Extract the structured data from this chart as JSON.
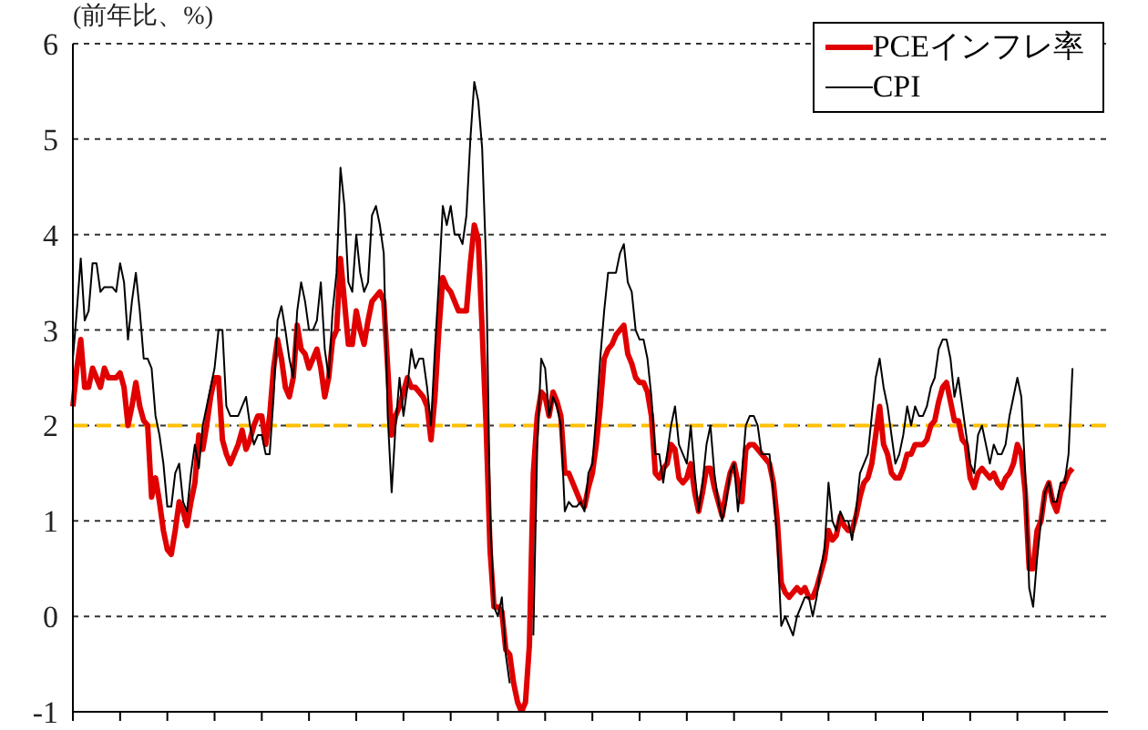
{
  "chart_data": {
    "type": "line",
    "ylabel": "(前年比、%)",
    "categories": [
      null,
      null,
      null,
      null,
      null,
      null,
      null,
      null,
      null,
      null,
      null,
      null,
      null,
      null,
      null,
      null,
      null,
      null,
      null,
      null,
      null,
      null,
      null,
      null,
      null,
      null,
      null,
      null,
      null,
      null,
      null,
      null,
      null,
      null,
      null,
      null,
      null,
      null,
      null,
      null,
      null,
      null,
      null,
      null,
      null,
      null,
      null,
      null,
      null,
      null,
      null,
      null,
      null,
      null,
      null,
      null,
      null,
      null,
      null,
      null,
      null,
      null,
      null,
      null,
      null,
      null,
      null,
      null,
      null,
      null,
      null,
      null,
      null,
      null,
      null,
      null,
      null,
      null,
      null,
      null,
      null,
      null,
      null,
      null,
      null,
      null,
      null,
      null,
      null,
      null,
      null,
      null,
      null,
      null,
      null,
      null,
      null,
      null,
      null,
      null,
      null,
      null,
      null,
      null,
      null,
      null,
      null,
      null,
      null,
      null,
      null,
      null,
      null,
      null,
      null,
      null,
      null,
      null,
      null,
      null,
      null,
      null,
      null,
      null,
      null,
      null,
      null,
      null,
      null,
      null,
      null,
      null,
      null,
      null,
      null,
      null,
      null,
      null,
      null,
      null,
      null,
      null,
      null,
      null,
      null,
      null,
      null,
      null,
      null,
      null,
      null,
      null,
      null,
      null,
      null,
      null,
      null,
      null,
      null,
      null,
      null,
      null,
      null,
      null,
      null,
      null,
      null,
      null,
      null,
      null,
      null,
      null,
      null,
      null,
      null,
      null,
      null,
      null,
      null,
      null,
      null,
      null,
      null,
      null,
      null,
      null,
      null,
      null,
      null,
      null,
      null,
      null,
      null,
      null,
      null,
      null,
      null,
      null,
      null,
      null,
      null,
      null,
      null,
      null,
      null,
      null,
      null,
      null,
      null,
      null,
      null,
      null,
      null,
      null,
      null,
      null,
      null,
      null,
      null,
      null,
      null,
      null,
      null,
      null,
      null,
      null,
      null,
      null,
      null,
      null,
      null,
      null,
      null,
      null,
      null,
      null,
      null,
      null,
      null,
      null,
      null,
      null,
      null,
      null,
      null,
      null,
      null,
      null,
      null,
      null,
      null,
      null,
      null,
      null,
      null,
      null,
      null,
      null,
      null,
      null,
      null,
      null,
      null,
      null
    ],
    "series": [
      {
        "name": "PCEインフレ率",
        "color": "#e00000",
        "values": [
          2.2,
          2.6,
          2.9,
          2.4,
          2.4,
          2.6,
          2.5,
          2.4,
          2.6,
          2.5,
          2.5,
          2.5,
          2.55,
          2.4,
          2.0,
          2.2,
          2.45,
          2.2,
          2.05,
          2.0,
          1.25,
          1.45,
          1.2,
          0.9,
          0.7,
          0.65,
          0.9,
          1.2,
          1.1,
          0.95,
          1.2,
          1.4,
          1.9,
          1.75,
          2.0,
          2.3,
          2.5,
          2.5,
          1.85,
          1.7,
          1.6,
          1.7,
          1.8,
          1.95,
          1.75,
          1.85,
          2.0,
          2.1,
          2.1,
          1.8,
          2.1,
          2.6,
          2.9,
          2.7,
          2.4,
          2.3,
          2.5,
          3.05,
          2.8,
          2.75,
          2.6,
          2.7,
          2.8,
          2.6,
          2.3,
          2.5,
          2.9,
          3.0,
          3.75,
          3.3,
          2.85,
          2.85,
          3.2,
          3.0,
          2.85,
          3.1,
          3.3,
          3.35,
          3.4,
          3.3,
          2.6,
          1.9,
          2.1,
          2.2,
          2.35,
          2.5,
          2.4,
          2.4,
          2.35,
          2.3,
          2.2,
          1.85,
          2.3,
          3.0,
          3.55,
          3.45,
          3.4,
          3.3,
          3.2,
          3.2,
          3.2,
          3.7,
          4.1,
          3.95,
          3.0,
          2.0,
          0.7,
          0.1,
          0.1,
          0.05,
          -0.35,
          -0.4,
          -0.7,
          -0.9,
          -1.0,
          -0.9,
          -0.3,
          1.5,
          2.1,
          2.35,
          2.3,
          2.1,
          2.35,
          2.25,
          2.1,
          1.5,
          1.5,
          1.4,
          1.3,
          1.2,
          1.15,
          1.35,
          1.5,
          1.8,
          2.2,
          2.7,
          2.8,
          2.85,
          2.95,
          3.0,
          3.05,
          2.75,
          2.65,
          2.5,
          2.45,
          2.45,
          2.35,
          2.1,
          1.5,
          1.45,
          1.55,
          1.6,
          1.8,
          1.75,
          1.45,
          1.4,
          1.45,
          1.6,
          1.3,
          1.1,
          1.3,
          1.55,
          1.55,
          1.35,
          1.2,
          1.05,
          1.3,
          1.5,
          1.6,
          1.4,
          1.2,
          1.75,
          1.8,
          1.8,
          1.75,
          1.7,
          1.65,
          1.6,
          1.4,
          1.0,
          0.35,
          0.25,
          0.2,
          0.25,
          0.3,
          0.25,
          0.3,
          0.2,
          0.2,
          0.3,
          0.45,
          0.6,
          0.9,
          0.8,
          0.85,
          1.05,
          0.95,
          0.9,
          0.9,
          1.05,
          1.25,
          1.4,
          1.45,
          1.6,
          1.9,
          2.2,
          1.8,
          1.7,
          1.5,
          1.45,
          1.45,
          1.55,
          1.7,
          1.7,
          1.8,
          1.8,
          1.8,
          1.85,
          2.0,
          2.05,
          2.25,
          2.4,
          2.45,
          2.25,
          2.05,
          2.05,
          1.85,
          1.8,
          1.45,
          1.35,
          1.5,
          1.55,
          1.5,
          1.45,
          1.5,
          1.4,
          1.35,
          1.45,
          1.5,
          1.6,
          1.8,
          1.7,
          1.3,
          0.5,
          0.5,
          0.9,
          1.0,
          1.3,
          1.4,
          1.2,
          1.1,
          1.3,
          1.4,
          1.5,
          1.55,
          null,
          null,
          null,
          null,
          null,
          null,
          null,
          null,
          null
        ]
      },
      {
        "name": "CPI",
        "color": "#000000",
        "values": [
          2.7,
          3.2,
          3.75,
          3.1,
          3.2,
          3.7,
          3.7,
          3.4,
          3.45,
          3.45,
          3.45,
          3.4,
          3.7,
          3.5,
          2.9,
          3.3,
          3.6,
          3.2,
          2.7,
          2.7,
          2.6,
          2.1,
          1.9,
          1.6,
          1.15,
          1.15,
          1.5,
          1.6,
          1.2,
          1.1,
          1.5,
          1.8,
          1.55,
          2.0,
          2.2,
          2.4,
          2.6,
          3.0,
          3.0,
          2.2,
          2.1,
          2.1,
          2.1,
          2.2,
          2.3,
          2.0,
          1.8,
          1.9,
          1.9,
          1.7,
          1.7,
          2.3,
          3.1,
          3.25,
          3.0,
          2.7,
          2.5,
          3.2,
          3.5,
          3.3,
          3.0,
          3.0,
          3.1,
          3.5,
          2.8,
          2.5,
          3.2,
          3.6,
          4.7,
          4.3,
          3.5,
          3.4,
          4.0,
          3.6,
          3.4,
          3.5,
          4.2,
          4.3,
          4.1,
          3.8,
          2.1,
          1.3,
          2.0,
          2.5,
          2.1,
          2.4,
          2.8,
          2.6,
          2.7,
          2.7,
          2.4,
          2.0,
          2.8,
          3.5,
          4.3,
          4.1,
          4.3,
          4.0,
          4.0,
          3.9,
          4.2,
          5.0,
          5.6,
          5.4,
          4.9,
          3.7,
          1.1,
          0.1,
          0.0,
          0.2,
          -0.4,
          -0.7,
          null,
          null,
          null,
          null,
          null,
          -0.2,
          1.8,
          2.7,
          2.6,
          2.1,
          2.3,
          2.2,
          2.0,
          1.1,
          1.2,
          1.15,
          1.15,
          1.2,
          1.1,
          1.5,
          1.6,
          2.1,
          2.7,
          3.2,
          3.6,
          3.6,
          3.6,
          3.8,
          3.9,
          3.5,
          3.4,
          3.0,
          2.9,
          2.9,
          2.7,
          2.3,
          1.7,
          1.7,
          1.4,
          1.7,
          2.0,
          2.2,
          1.8,
          1.7,
          1.6,
          2.0,
          1.5,
          1.1,
          1.4,
          1.8,
          2.0,
          1.5,
          1.2,
          1.0,
          1.2,
          1.5,
          1.6,
          1.1,
          1.5,
          2.0,
          2.1,
          2.1,
          2.0,
          1.7,
          1.7,
          1.7,
          1.3,
          0.8,
          -0.1,
          0.0,
          -0.1,
          -0.2,
          0.0,
          0.1,
          0.2,
          0.2,
          0.0,
          0.2,
          0.5,
          0.7,
          1.4,
          1.0,
          0.9,
          1.1,
          1.0,
          1.0,
          0.8,
          1.1,
          1.5,
          1.6,
          1.7,
          2.1,
          2.5,
          2.7,
          2.4,
          2.2,
          1.9,
          1.6,
          1.7,
          1.9,
          2.2,
          2.0,
          2.2,
          2.1,
          2.1,
          2.2,
          2.4,
          2.5,
          2.8,
          2.9,
          2.9,
          2.7,
          2.3,
          2.5,
          2.2,
          1.9,
          1.6,
          1.5,
          1.9,
          2.0,
          1.8,
          1.6,
          1.8,
          1.7,
          1.7,
          1.8,
          2.1,
          2.3,
          2.5,
          2.3,
          1.5,
          0.3,
          0.1,
          0.6,
          1.0,
          1.3,
          1.4,
          1.2,
          1.2,
          1.4,
          1.4,
          1.7,
          2.6,
          null,
          null,
          null,
          null,
          null,
          null,
          null,
          null,
          null
        ]
      }
    ],
    "ylim": [
      -1,
      6
    ],
    "yticks": [
      -1,
      0,
      1,
      2,
      3,
      4,
      5,
      6
    ],
    "grid": "y",
    "legend": "top right",
    "marker": "none",
    "line_style": "solid",
    "ref_lines": [
      {
        "axis": "y",
        "value": 2,
        "color": "#ffc000",
        "line_style": "dashed"
      }
    ]
  }
}
